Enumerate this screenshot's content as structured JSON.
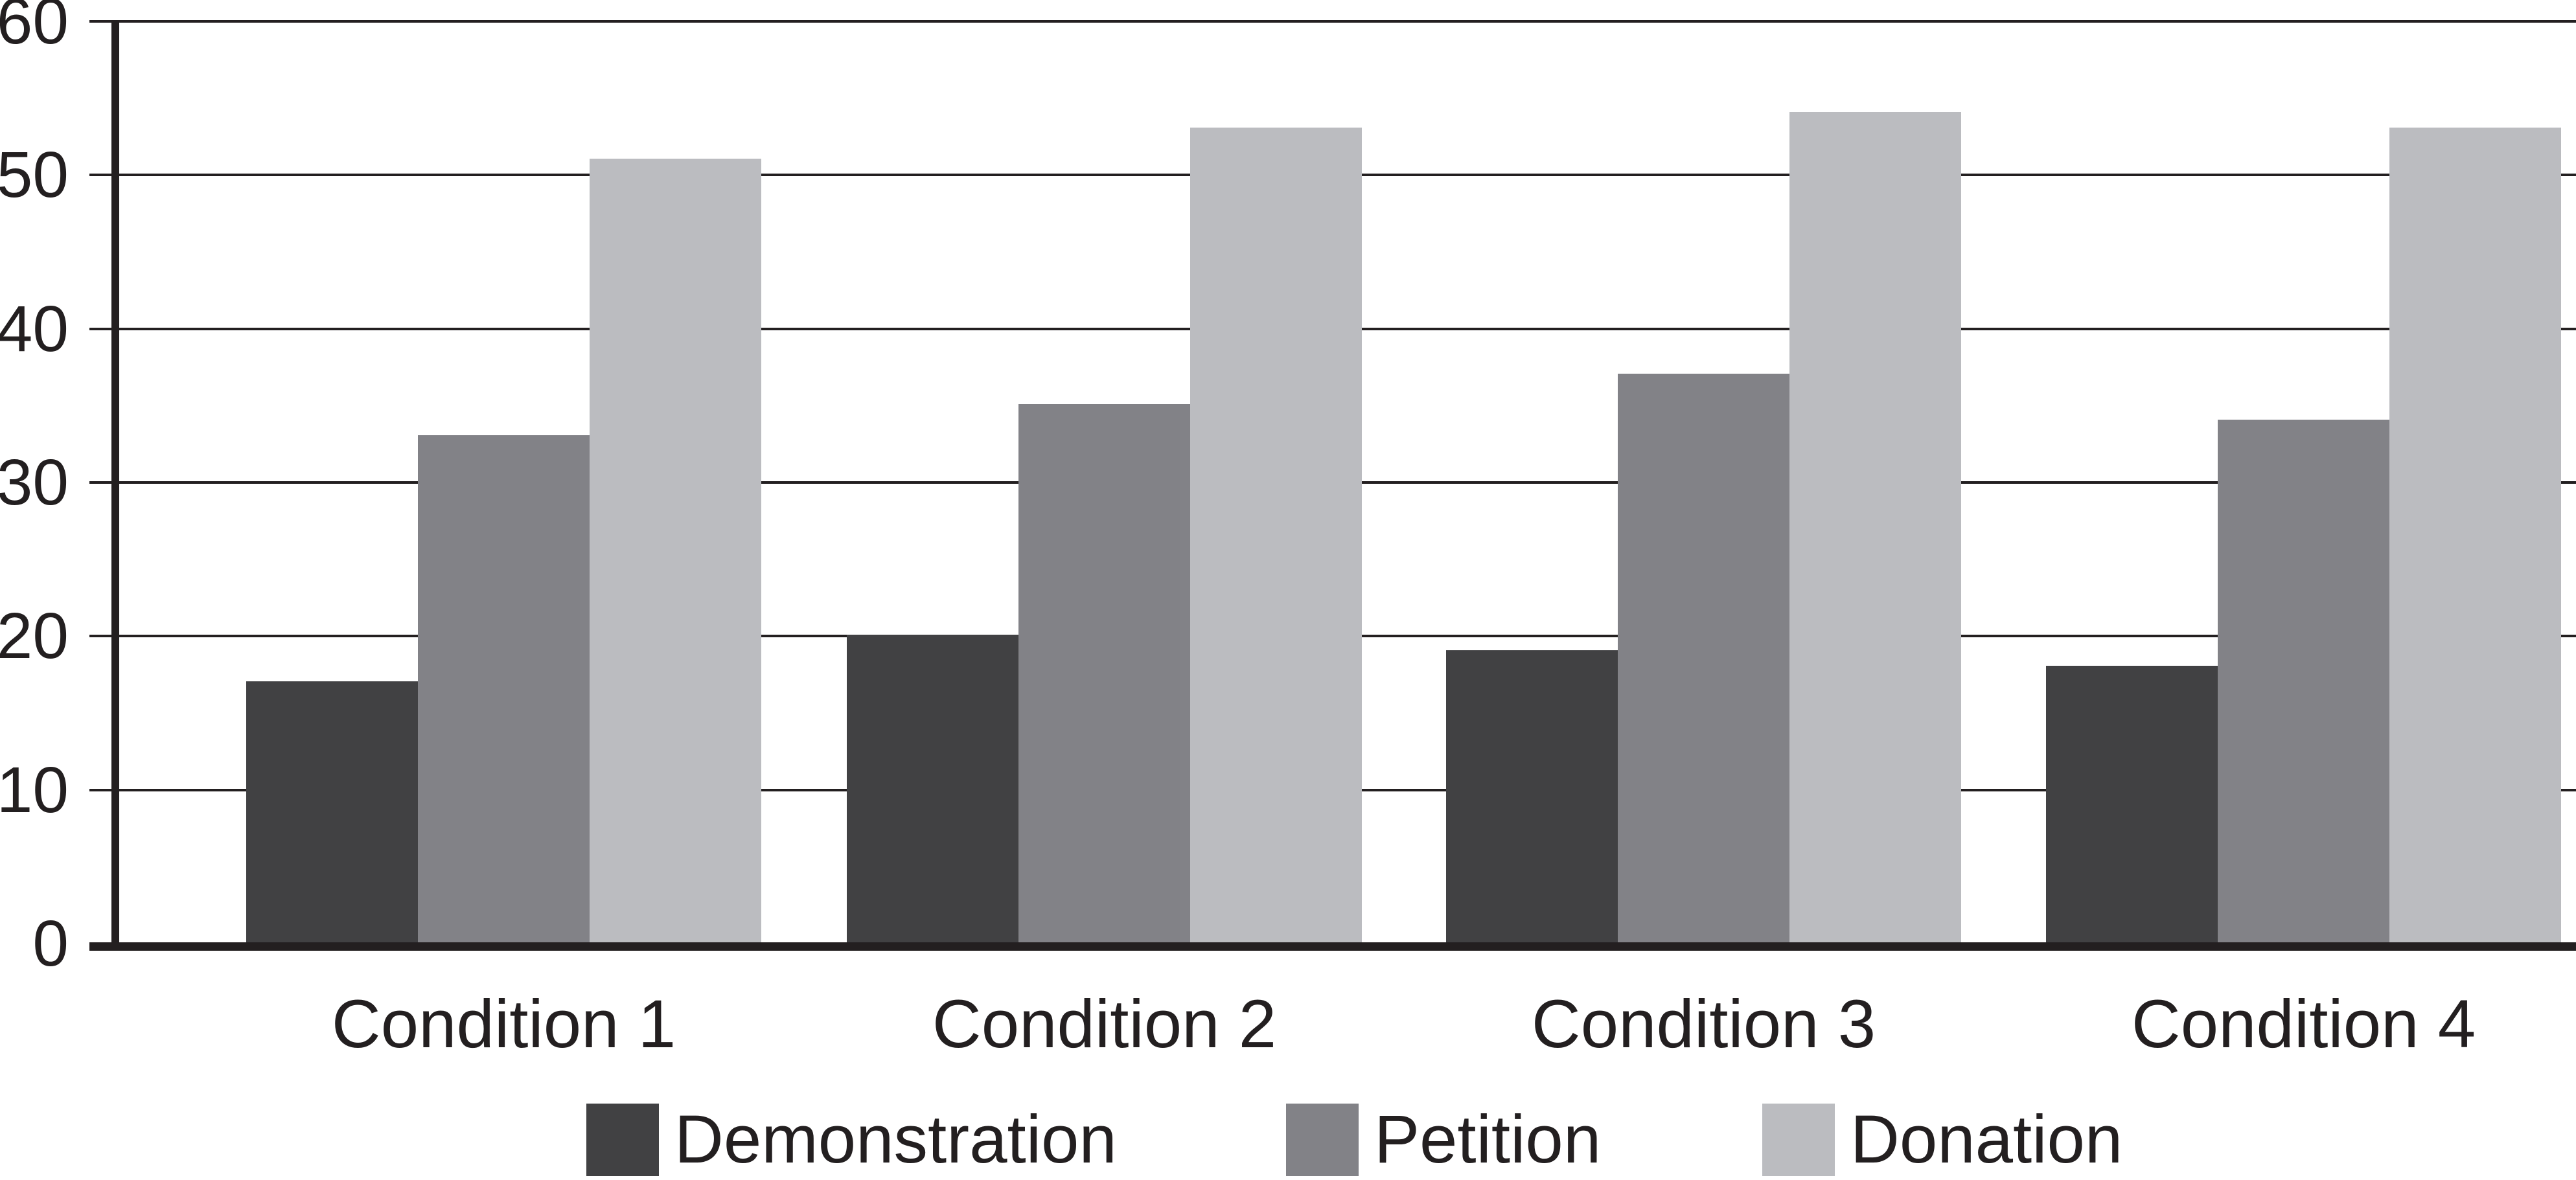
{
  "chart_data": {
    "type": "bar",
    "title": "",
    "xlabel": "",
    "ylabel": "",
    "categories": [
      "Condition 1",
      "Condition 2",
      "Condition 3",
      "Condition 4"
    ],
    "series": [
      {
        "name": "Demonstration",
        "color": "#414143",
        "values": [
          17,
          20,
          19,
          18
        ]
      },
      {
        "name": "Petition",
        "color": "#828287",
        "values": [
          33,
          35,
          37,
          34
        ]
      },
      {
        "name": "Donation",
        "color": "#bbbcc0",
        "values": [
          51,
          53,
          54,
          53
        ]
      }
    ],
    "ylim": [
      0,
      60
    ],
    "y_ticks": [
      0,
      10,
      20,
      30,
      40,
      50,
      60
    ],
    "grid": "horizontal",
    "legend_position": "bottom",
    "axis_color": "#231f20"
  }
}
